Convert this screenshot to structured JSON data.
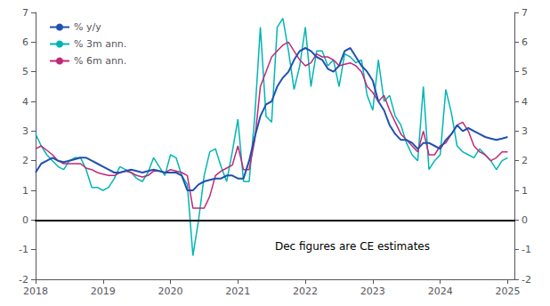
{
  "chart_data": {
    "type": "line",
    "x": [
      2018.0,
      2018.083,
      2018.167,
      2018.25,
      2018.333,
      2018.417,
      2018.5,
      2018.583,
      2018.667,
      2018.75,
      2018.833,
      2018.917,
      2019.0,
      2019.083,
      2019.167,
      2019.25,
      2019.333,
      2019.417,
      2019.5,
      2019.583,
      2019.667,
      2019.75,
      2019.833,
      2019.917,
      2020.0,
      2020.083,
      2020.167,
      2020.25,
      2020.333,
      2020.417,
      2020.5,
      2020.583,
      2020.667,
      2020.75,
      2020.833,
      2020.917,
      2021.0,
      2021.083,
      2021.167,
      2021.25,
      2021.333,
      2021.417,
      2021.5,
      2021.583,
      2021.667,
      2021.75,
      2021.833,
      2021.917,
      2022.0,
      2022.083,
      2022.167,
      2022.25,
      2022.333,
      2022.417,
      2022.5,
      2022.583,
      2022.667,
      2022.75,
      2022.833,
      2022.917,
      2023.0,
      2023.083,
      2023.167,
      2023.25,
      2023.333,
      2023.417,
      2023.5,
      2023.583,
      2023.667,
      2023.75,
      2023.833,
      2023.917,
      2024.0,
      2024.083,
      2024.167,
      2024.25,
      2024.333,
      2024.417,
      2024.5,
      2024.583,
      2024.667,
      2024.75,
      2024.833,
      2024.917,
      2025.0
    ],
    "series": [
      {
        "name": "% y/y",
        "color": "#2050b0",
        "values": [
          1.6,
          1.9,
          2.0,
          2.1,
          2.0,
          1.95,
          2.0,
          2.05,
          2.1,
          2.1,
          2.0,
          1.9,
          1.8,
          1.7,
          1.6,
          1.6,
          1.65,
          1.7,
          1.65,
          1.6,
          1.65,
          1.7,
          1.65,
          1.6,
          1.6,
          1.6,
          1.5,
          1.0,
          1.0,
          1.2,
          1.3,
          1.35,
          1.4,
          1.4,
          1.5,
          1.5,
          1.4,
          1.4,
          2.0,
          2.8,
          3.5,
          3.9,
          4.0,
          4.5,
          4.8,
          5.0,
          5.4,
          5.7,
          5.8,
          5.7,
          5.5,
          5.4,
          5.1,
          5.0,
          5.2,
          5.7,
          5.8,
          5.5,
          5.2,
          5.0,
          4.7,
          4.0,
          3.7,
          3.2,
          2.9,
          2.7,
          2.7,
          2.6,
          2.4,
          2.6,
          2.6,
          2.5,
          2.4,
          2.7,
          2.9,
          3.2,
          3.0,
          3.1,
          3.0,
          2.9,
          2.8,
          2.75,
          2.7,
          2.75,
          2.8
        ]
      },
      {
        "name": "% 3m ann.",
        "color": "#00b5b5",
        "values": [
          2.9,
          2.5,
          2.2,
          2.0,
          1.8,
          1.7,
          2.0,
          2.1,
          2.1,
          1.7,
          1.1,
          1.1,
          1.0,
          1.1,
          1.4,
          1.8,
          1.7,
          1.6,
          1.4,
          1.3,
          1.6,
          2.1,
          1.8,
          1.5,
          2.2,
          2.1,
          1.5,
          1.2,
          -1.2,
          0.0,
          1.5,
          2.3,
          2.4,
          1.8,
          1.3,
          2.3,
          3.4,
          1.3,
          1.3,
          3.5,
          6.5,
          3.5,
          3.3,
          6.5,
          6.8,
          5.7,
          4.4,
          5.2,
          6.5,
          4.5,
          5.7,
          5.7,
          5.2,
          5.4,
          4.5,
          5.6,
          5.5,
          5.3,
          5.4,
          4.2,
          3.7,
          5.4,
          4.0,
          4.2,
          3.5,
          3.2,
          2.6,
          2.2,
          2.0,
          4.5,
          1.7,
          2.0,
          2.2,
          4.4,
          3.6,
          2.5,
          2.3,
          2.2,
          2.1,
          2.4,
          2.2,
          2.0,
          1.7,
          2.0,
          2.1
        ]
      },
      {
        "name": "% 6m ann.",
        "color": "#c02878",
        "values": [
          2.4,
          2.5,
          2.35,
          2.2,
          2.0,
          1.9,
          1.9,
          1.9,
          1.9,
          1.75,
          1.7,
          1.6,
          1.55,
          1.5,
          1.5,
          1.6,
          1.65,
          1.6,
          1.5,
          1.45,
          1.5,
          1.65,
          1.65,
          1.6,
          1.7,
          1.65,
          1.6,
          1.5,
          0.4,
          0.4,
          0.4,
          0.8,
          1.5,
          1.65,
          1.75,
          1.85,
          2.5,
          1.7,
          1.7,
          2.7,
          4.5,
          5.0,
          5.5,
          5.7,
          5.9,
          6.0,
          5.7,
          5.4,
          5.2,
          5.3,
          5.6,
          5.5,
          5.5,
          5.4,
          5.2,
          5.25,
          5.3,
          5.2,
          5.0,
          4.5,
          4.3,
          4.0,
          4.2,
          3.7,
          3.3,
          2.9,
          2.7,
          2.5,
          2.3,
          3.0,
          2.2,
          2.2,
          2.5,
          2.6,
          2.9,
          3.2,
          3.3,
          3.0,
          2.5,
          2.3,
          2.2,
          2.0,
          2.1,
          2.3,
          2.3
        ]
      }
    ],
    "xlim": [
      2018.0,
      2025.1
    ],
    "xticks": [
      2018,
      2019,
      2020,
      2021,
      2022,
      2023,
      2024,
      2025
    ],
    "ylim": [
      -2,
      7
    ],
    "yticks": [
      -2,
      -1,
      0,
      1,
      2,
      3,
      4,
      5,
      6,
      7
    ],
    "y2lim": [
      -2,
      7
    ],
    "y2ticks": [
      -2,
      -1,
      0,
      1,
      2,
      3,
      4,
      5,
      6,
      7
    ],
    "annotation": "Dec figures are CE estimates",
    "legend": "upper-left",
    "grid": false
  }
}
